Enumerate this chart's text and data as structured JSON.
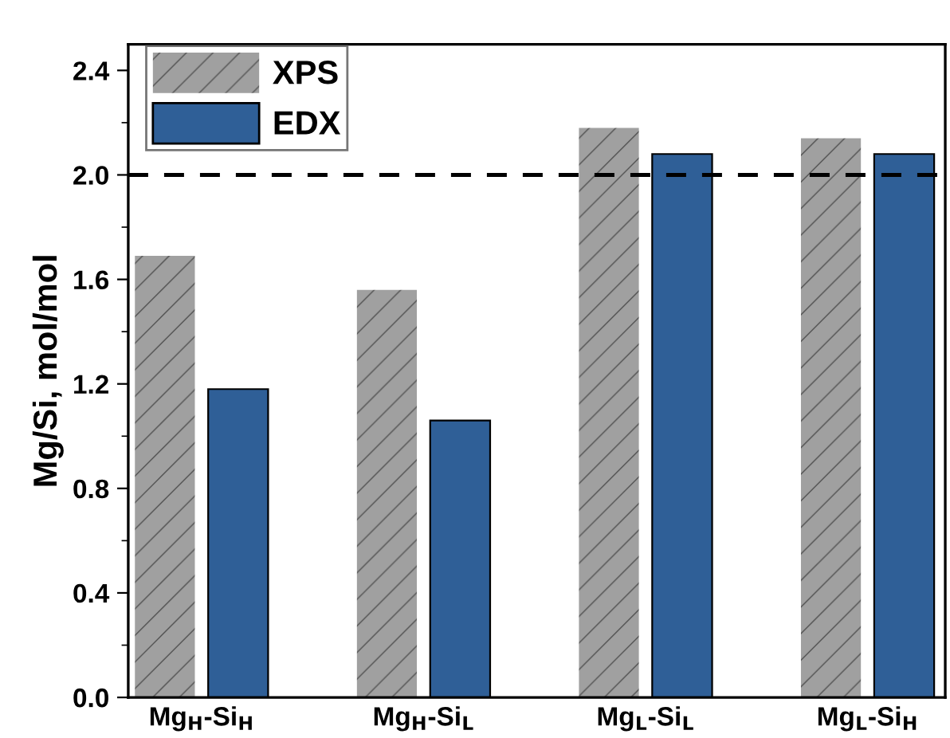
{
  "chart_data": {
    "type": "bar",
    "ylabel": "Mg/Si, mol/mol",
    "categories": [
      "Mg$_{H}$-Si$_{H}$",
      "Mg$_{H}$-Si$_{L}$",
      "Mg$_{L}$-Si$_{L}$",
      "Mg$_{L}$-Si$_{H}$"
    ],
    "series": [
      {
        "name": "XPS",
        "color": "#a0a0a0",
        "values": [
          1.69,
          1.56,
          2.18,
          2.14
        ]
      },
      {
        "name": "EDX",
        "color": "#2f5f97",
        "values": [
          1.18,
          1.06,
          2.08,
          2.08
        ]
      }
    ],
    "ylim": [
      0,
      2.5
    ],
    "yticks": [
      {
        "value": 0,
        "label": "0.0"
      },
      0.4,
      0.8,
      1.2,
      1.6,
      {
        "value": 2,
        "label": "2.0"
      },
      2.4
    ],
    "ref_lines": [
      {
        "axis": "y",
        "value": 2.0,
        "line_style": "dashed",
        "color": "#000000"
      }
    ],
    "legend": "top left",
    "grid": false
  }
}
